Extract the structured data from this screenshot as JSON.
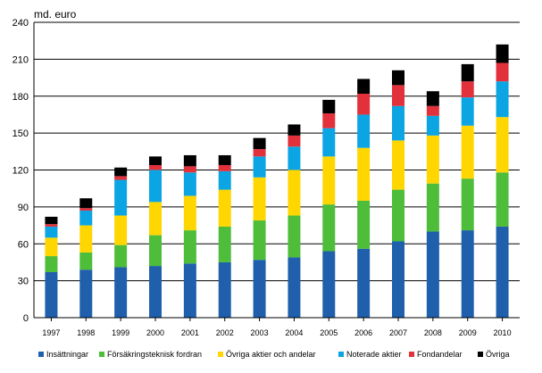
{
  "chart_data": {
    "type": "bar",
    "stacked": true,
    "title": "",
    "ylabel": "md. euro",
    "xlabel": "",
    "ylim": [
      0,
      240
    ],
    "yticks": [
      0,
      30,
      60,
      90,
      120,
      150,
      180,
      210,
      240
    ],
    "grid": true,
    "legend_position": "bottom",
    "categories": [
      "1997",
      "1998",
      "1999",
      "2000",
      "2001",
      "2002",
      "2003",
      "2004",
      "2005",
      "2006",
      "2007",
      "2008",
      "2009",
      "2010"
    ],
    "series": [
      {
        "name": "Insättningar",
        "color": "#1f5fac",
        "values": [
          37,
          39,
          41,
          42,
          44,
          45,
          47,
          49,
          54,
          56,
          62,
          70,
          71,
          74
        ]
      },
      {
        "name": "Försäkringsteknisk fordran",
        "color": "#4dbd3a",
        "values": [
          13,
          14,
          18,
          25,
          27,
          29,
          32,
          34,
          38,
          39,
          42,
          39,
          42,
          44
        ]
      },
      {
        "name": "Övriga aktier och andelar",
        "color": "#ffd600",
        "values": [
          15,
          22,
          24,
          27,
          28,
          30,
          35,
          37,
          39,
          43,
          40,
          39,
          43,
          45
        ]
      },
      {
        "name": "Noterade aktier",
        "color": "#0ba5e4",
        "values": [
          9,
          12,
          29,
          26,
          19,
          15,
          17,
          19,
          23,
          27,
          28,
          16,
          23,
          29
        ]
      },
      {
        "name": "Fondandelar",
        "color": "#e2313a",
        "values": [
          2,
          2,
          3,
          4,
          5,
          5,
          6,
          9,
          12,
          17,
          17,
          8,
          13,
          15
        ]
      },
      {
        "name": "Övriga",
        "color": "#000000",
        "values": [
          6,
          8,
          7,
          7,
          9,
          8,
          9,
          9,
          11,
          12,
          12,
          12,
          14,
          15
        ]
      }
    ]
  }
}
